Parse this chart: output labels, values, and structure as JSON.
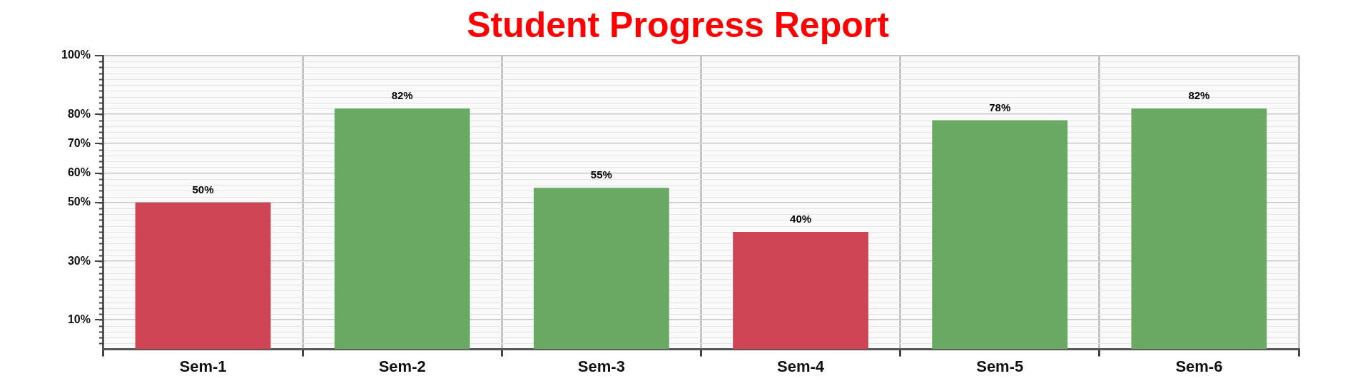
{
  "chart_data": {
    "type": "bar",
    "title": "Student Progress Report",
    "categories": [
      "Sem-1",
      "Sem-2",
      "Sem-3",
      "Sem-4",
      "Sem-5",
      "Sem-6"
    ],
    "values": [
      50,
      82,
      55,
      40,
      78,
      82
    ],
    "value_labels": [
      "50%",
      "82%",
      "55%",
      "40%",
      "78%",
      "82%"
    ],
    "colors": [
      "#d04555",
      "#6aa964",
      "#6aa964",
      "#d04555",
      "#6aa964",
      "#6aa964"
    ],
    "ylim": [
      0,
      100
    ],
    "yticks": [
      {
        "value": 10,
        "label": "10%"
      },
      {
        "value": 30,
        "label": "30%"
      },
      {
        "value": 50,
        "label": "50%"
      },
      {
        "value": 60,
        "label": "60%"
      },
      {
        "value": 70,
        "label": "70%"
      },
      {
        "value": 80,
        "label": "80%"
      },
      {
        "value": 100,
        "label": "100%"
      }
    ],
    "grid": true
  }
}
